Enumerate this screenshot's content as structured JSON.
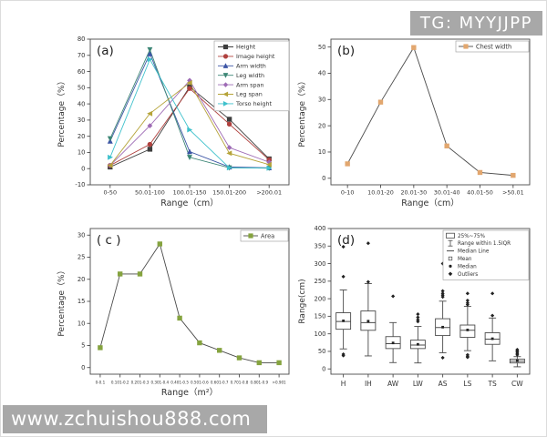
{
  "watermarks": {
    "top_right": "TG: MYYJJPP",
    "bottom_left": "www.zchuishou888.com"
  },
  "colors": {
    "watermark_bg": "#a8a8a8",
    "watermark_text": "#ffffff",
    "axis": "#4a4a4a",
    "tick_text": "#333333"
  },
  "chart_data": [
    {
      "id": "a",
      "type": "line",
      "panel_label": "(a)",
      "xlabel": "Range（cm）",
      "ylabel": "Percentage（%）",
      "categories": [
        "0-50",
        "50.01-100",
        "100.01-150",
        "150.01-200",
        ">200.01"
      ],
      "ylim": [
        -10,
        80
      ],
      "ytick_step": 10,
      "legend_position": "top-right",
      "grid": false,
      "series": [
        {
          "name": "Height",
          "color": "#3f3f3f",
          "marker": "square",
          "values": [
            1,
            12,
            50.5,
            30.5,
            6
          ]
        },
        {
          "name": "Image height",
          "color": "#b0413e",
          "marker": "circle",
          "values": [
            2,
            15,
            49.5,
            27.5,
            5.5
          ]
        },
        {
          "name": "Arm width",
          "color": "#3c55a5",
          "marker": "triangle-up",
          "values": [
            17,
            71,
            10.5,
            1,
            0.5
          ]
        },
        {
          "name": "Leg width",
          "color": "#3d8676",
          "marker": "triangle-down",
          "values": [
            18.5,
            73.5,
            7,
            0.5,
            0.3
          ]
        },
        {
          "name": "Arm span",
          "color": "#9e6bb5",
          "marker": "diamond",
          "values": [
            2,
            26.5,
            54.5,
            13,
            4
          ]
        },
        {
          "name": "Leg span",
          "color": "#b5a339",
          "marker": "triangle-left",
          "values": [
            2,
            34,
            53,
            9.5,
            2.5
          ]
        },
        {
          "name": "Torso height",
          "color": "#3fc1cc",
          "marker": "triangle-right",
          "values": [
            7,
            67.5,
            24,
            0.5,
            0.3
          ]
        }
      ]
    },
    {
      "id": "b",
      "type": "line",
      "panel_label": "(b)",
      "xlabel": "Range（cm）",
      "ylabel": "Percentage（%）",
      "categories": [
        "0-10",
        "10.01-20",
        "20.01-30",
        "30.01-40",
        "40.01-50",
        ">50.01"
      ],
      "ylim": [
        0,
        50
      ],
      "ytick_step": 10,
      "legend_position": "top-right",
      "grid": false,
      "series": [
        {
          "name": "Chest width",
          "color": "#e2a76f",
          "line_color": "#4a4a4a",
          "marker": "square",
          "values": [
            5.5,
            29,
            49.8,
            12.3,
            2.2,
            1.1
          ]
        }
      ]
    },
    {
      "id": "c",
      "type": "line",
      "panel_label": "( c )",
      "xlabel": "Range（m²）",
      "ylabel": "Percentage（%）",
      "categories": [
        "0-0.1",
        "0.101-0.2",
        "0.201-0.3",
        "0.301-0.4",
        "0.401-0.5",
        "0.501-0.6",
        "0.601-0.7",
        "0.701-0.8",
        "0.801-0.9",
        ">0.901"
      ],
      "ylim": [
        0,
        30
      ],
      "ytick_step": 5,
      "legend_position": "top-right",
      "grid": false,
      "series": [
        {
          "name": "Area",
          "color": "#85a33f",
          "line_color": "#4a4a4a",
          "marker": "square",
          "values": [
            4.5,
            21.2,
            21.2,
            28,
            11.2,
            5.6,
            3.9,
            2.2,
            1.1,
            1.1
          ]
        }
      ]
    },
    {
      "id": "d",
      "type": "box",
      "panel_label": "(d)",
      "xlabel": "",
      "ylabel": "Range(cm)",
      "categories": [
        "H",
        "IH",
        "AW",
        "LW",
        "AS",
        "LS",
        "TS",
        "CW"
      ],
      "ylim": [
        0,
        400
      ],
      "ytick_step": 50,
      "legend_position": "top-right",
      "grid": false,
      "legend_items": [
        "25%~75%",
        "Range within 1.5IQR",
        "Median Line",
        "Mean",
        "Median",
        "Outliers"
      ],
      "boxes": [
        {
          "label": "H",
          "q1": 113,
          "median": 135,
          "q3": 160,
          "low": 57,
          "high": 225,
          "mean": 137,
          "outliers": [
            38,
            42,
            263,
            348
          ]
        },
        {
          "label": "IH",
          "q1": 110,
          "median": 132,
          "q3": 165,
          "low": 37,
          "high": 243,
          "mean": 136,
          "outliers": [
            248,
            358
          ]
        },
        {
          "label": "AW",
          "q1": 58,
          "median": 72,
          "q3": 92,
          "low": 18,
          "high": 132,
          "mean": 74,
          "outliers": [
            207
          ]
        },
        {
          "label": "LW",
          "q1": 58,
          "median": 68,
          "q3": 82,
          "low": 17,
          "high": 121,
          "mean": 70,
          "outliers": [
            135,
            140,
            147,
            156
          ]
        },
        {
          "label": "AS",
          "q1": 95,
          "median": 118,
          "q3": 143,
          "low": 46,
          "high": 193,
          "mean": 119,
          "outliers": [
            32,
            205,
            210,
            215,
            222,
            300
          ]
        },
        {
          "label": "LS",
          "q1": 90,
          "median": 110,
          "q3": 125,
          "low": 52,
          "high": 178,
          "mean": 111,
          "outliers": [
            33,
            36,
            40,
            183,
            188,
            195,
            215,
            268
          ]
        },
        {
          "label": "TS",
          "q1": 70,
          "median": 85,
          "q3": 103,
          "low": 23,
          "high": 145,
          "mean": 86,
          "outliers": [
            152,
            215
          ]
        },
        {
          "label": "CW",
          "q1": 17,
          "median": 22,
          "q3": 28,
          "low": 6,
          "high": 35,
          "mean": 23,
          "outliers": [
            40,
            44,
            48,
            52,
            55
          ]
        }
      ]
    }
  ]
}
